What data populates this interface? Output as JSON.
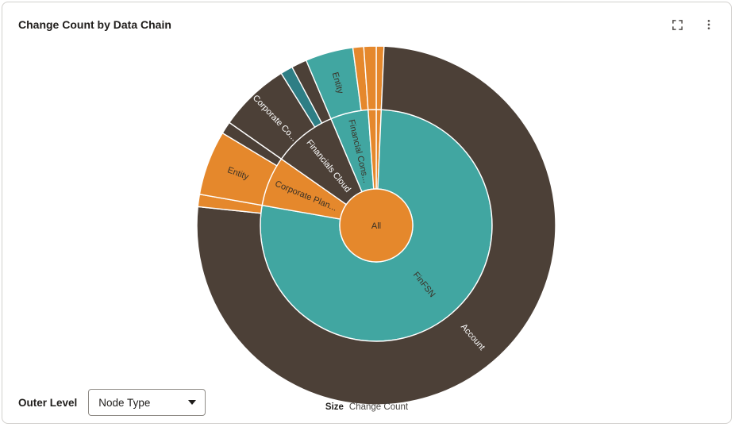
{
  "header": {
    "title": "Change Count by Data Chain",
    "icons": [
      "expand-icon",
      "kebab-menu-icon"
    ]
  },
  "controls": {
    "outer_level_label": "Outer Level",
    "outer_level_value": "Node Type"
  },
  "footer": {
    "size_label": "Size",
    "size_value": "Change Count"
  },
  "chart_data": {
    "type": "sunburst",
    "title": "Change Count by Data Chain",
    "size_by": "Change Count",
    "outer_level": "Node Type",
    "palette": {
      "teal": "#41A6A1",
      "orange": "#E5882C",
      "brown": "#4C4037",
      "dark_teal": "#2E7E85"
    },
    "label_colors": {
      "dark": "#3A3126",
      "light": "#FFFFFF"
    },
    "center": {
      "label": "All",
      "color": "orange",
      "label_color": "dark"
    },
    "rings": [
      {
        "name": "data-chain",
        "segments": [
          {
            "label": "",
            "start": 0,
            "end": 2.5,
            "color": "orange"
          },
          {
            "label": "FinFSN",
            "start": 2.5,
            "end": 280,
            "color": "teal",
            "label_color": "dark"
          },
          {
            "label": "Corporate Plan...",
            "start": 280,
            "end": 305,
            "color": "orange",
            "label_color": "dark"
          },
          {
            "label": "Financials Cloud",
            "start": 305,
            "end": 337,
            "color": "brown",
            "label_color": "light"
          },
          {
            "label": "Financial Cons...",
            "start": 337,
            "end": 356,
            "color": "teal",
            "label_color": "dark"
          },
          {
            "label": "",
            "start": 356,
            "end": 360,
            "color": "orange"
          }
        ]
      },
      {
        "name": "node-type",
        "segments": [
          {
            "label": "",
            "start": 0,
            "end": 2.5,
            "color": "orange"
          },
          {
            "label": "Account",
            "start": 2.5,
            "end": 276,
            "color": "brown",
            "label_color": "light"
          },
          {
            "label": "",
            "start": 276,
            "end": 280,
            "color": "orange"
          },
          {
            "label": "Entity",
            "start": 280,
            "end": 301,
            "color": "orange",
            "label_color": "dark"
          },
          {
            "label": "",
            "start": 301,
            "end": 305,
            "color": "brown"
          },
          {
            "label": "Corporate Co...",
            "start": 305,
            "end": 328,
            "color": "brown",
            "label_color": "light"
          },
          {
            "label": "",
            "start": 328,
            "end": 332,
            "color": "dark_teal"
          },
          {
            "label": "",
            "start": 332,
            "end": 337,
            "color": "brown"
          },
          {
            "label": "Entity",
            "start": 337,
            "end": 352.5,
            "color": "teal",
            "label_color": "dark"
          },
          {
            "label": "",
            "start": 352.5,
            "end": 356,
            "color": "orange"
          },
          {
            "label": "",
            "start": 356,
            "end": 360,
            "color": "orange"
          }
        ]
      }
    ]
  }
}
